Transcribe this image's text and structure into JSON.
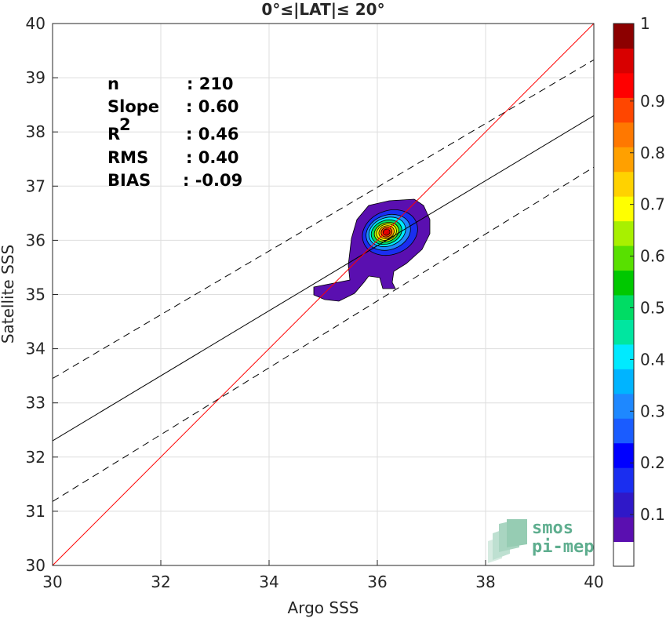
{
  "chart_data": {
    "type": "heatmap",
    "title": "0°≤|LAT|≤ 20°",
    "xlabel": "Argo SSS",
    "ylabel": "Satellite SSS",
    "xlim": [
      30,
      40
    ],
    "ylim": [
      30,
      40
    ],
    "x_ticks": [
      "30",
      "32",
      "34",
      "36",
      "38",
      "40"
    ],
    "y_ticks": [
      "30",
      "31",
      "32",
      "33",
      "34",
      "35",
      "36",
      "37",
      "38",
      "39",
      "40"
    ],
    "grid": true,
    "stats": [
      {
        "label": "n",
        "value": ": 210"
      },
      {
        "label": "Slope",
        "value": ": 0.60"
      },
      {
        "label": "R",
        "sup": "2",
        "value": ": 0.46"
      },
      {
        "label": "RMS",
        "value": ": 0.40"
      },
      {
        "label": "BIAS",
        "value": ": -0.09"
      }
    ],
    "lines": {
      "identity": {
        "x": [
          30,
          40
        ],
        "y": [
          30,
          40
        ],
        "color": "#ff0000"
      },
      "fit": {
        "x": [
          30,
          40
        ],
        "y": [
          32.3,
          38.3
        ],
        "color": "#000000"
      },
      "fit_upper": {
        "x": [
          30,
          40
        ],
        "y": [
          33.45,
          39.33
        ],
        "color": "#000000",
        "dash": true
      },
      "fit_lower": {
        "x": [
          30,
          40
        ],
        "y": [
          31.18,
          37.35
        ],
        "color": "#000000",
        "dash": true
      }
    },
    "density_peak": {
      "x": 36.17,
      "y": 36.15
    },
    "contour_levels": [
      0.05,
      0.15,
      0.25,
      0.35,
      0.45,
      0.55,
      0.65,
      0.75,
      0.85,
      0.95
    ],
    "colorbar": {
      "ticks": [
        "0.1",
        "0.2",
        "0.3",
        "0.4",
        "0.5",
        "0.6",
        "0.7",
        "0.8",
        "0.9",
        "1"
      ],
      "colors": [
        "#ffffff",
        "#5a0fb0",
        "#2f18c8",
        "#1a2ef0",
        "#0000ff",
        "#1a5cff",
        "#1e88ff",
        "#00b4ff",
        "#00eaff",
        "#00e6a0",
        "#00dc64",
        "#00c800",
        "#58e000",
        "#a8f000",
        "#ffff00",
        "#ffd200",
        "#ffa000",
        "#ff7800",
        "#ff4600",
        "#ff0000",
        "#d80000",
        "#8c0000"
      ]
    }
  },
  "watermark": {
    "line1": "smos",
    "line2": "pi-mep",
    "color": "#5fae8f"
  }
}
